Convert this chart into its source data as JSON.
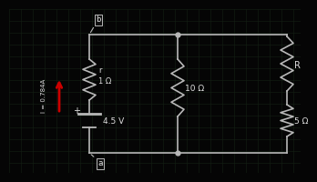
{
  "bg_color": "#050505",
  "grid_color": "#152015",
  "wire_color": "#b8b8b8",
  "label_color": "#e0e0e0",
  "arrow_color": "#cc0000",
  "battery_voltage": "4.5 V",
  "r_label": "r",
  "r_ohm": "1 Ω",
  "R_label": "R",
  "R10_label": "10 Ω",
  "R5_label": "5 Ω",
  "I_label": "I = 0.784A",
  "node_b_label": "b",
  "node_a_label": "a",
  "plus_label": "+"
}
